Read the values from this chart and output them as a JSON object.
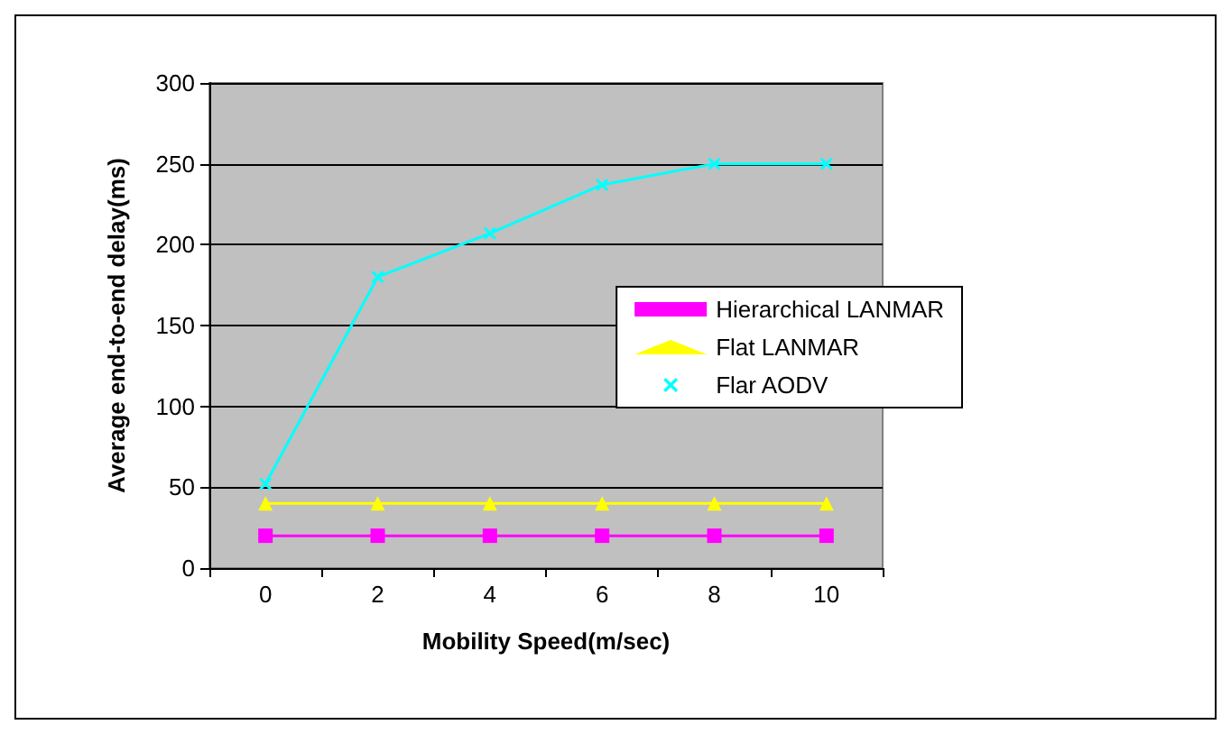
{
  "chart_data": {
    "type": "line",
    "xlabel": "Mobility Speed(m/sec)",
    "ylabel": "Average end-to-end delay(ms)",
    "categories": [
      "0",
      "2",
      "4",
      "6",
      "8",
      "10"
    ],
    "series": [
      {
        "name": "Hierarchical LANMAR",
        "color": "#ff00ff",
        "marker": "square",
        "values": [
          20,
          20,
          20,
          20,
          20,
          20
        ]
      },
      {
        "name": "Flat LANMAR",
        "color": "#ffff00",
        "marker": "triangle",
        "values": [
          40,
          40,
          40,
          40,
          40,
          40
        ]
      },
      {
        "name": "Flar AODV",
        "color": "#00ffff",
        "marker": "cross",
        "values": [
          52,
          180,
          207,
          237,
          250,
          250
        ]
      }
    ],
    "ylim": [
      0,
      300
    ],
    "yticks": [
      0,
      50,
      100,
      150,
      200,
      250,
      300
    ],
    "grid": "y",
    "legend": "right"
  }
}
